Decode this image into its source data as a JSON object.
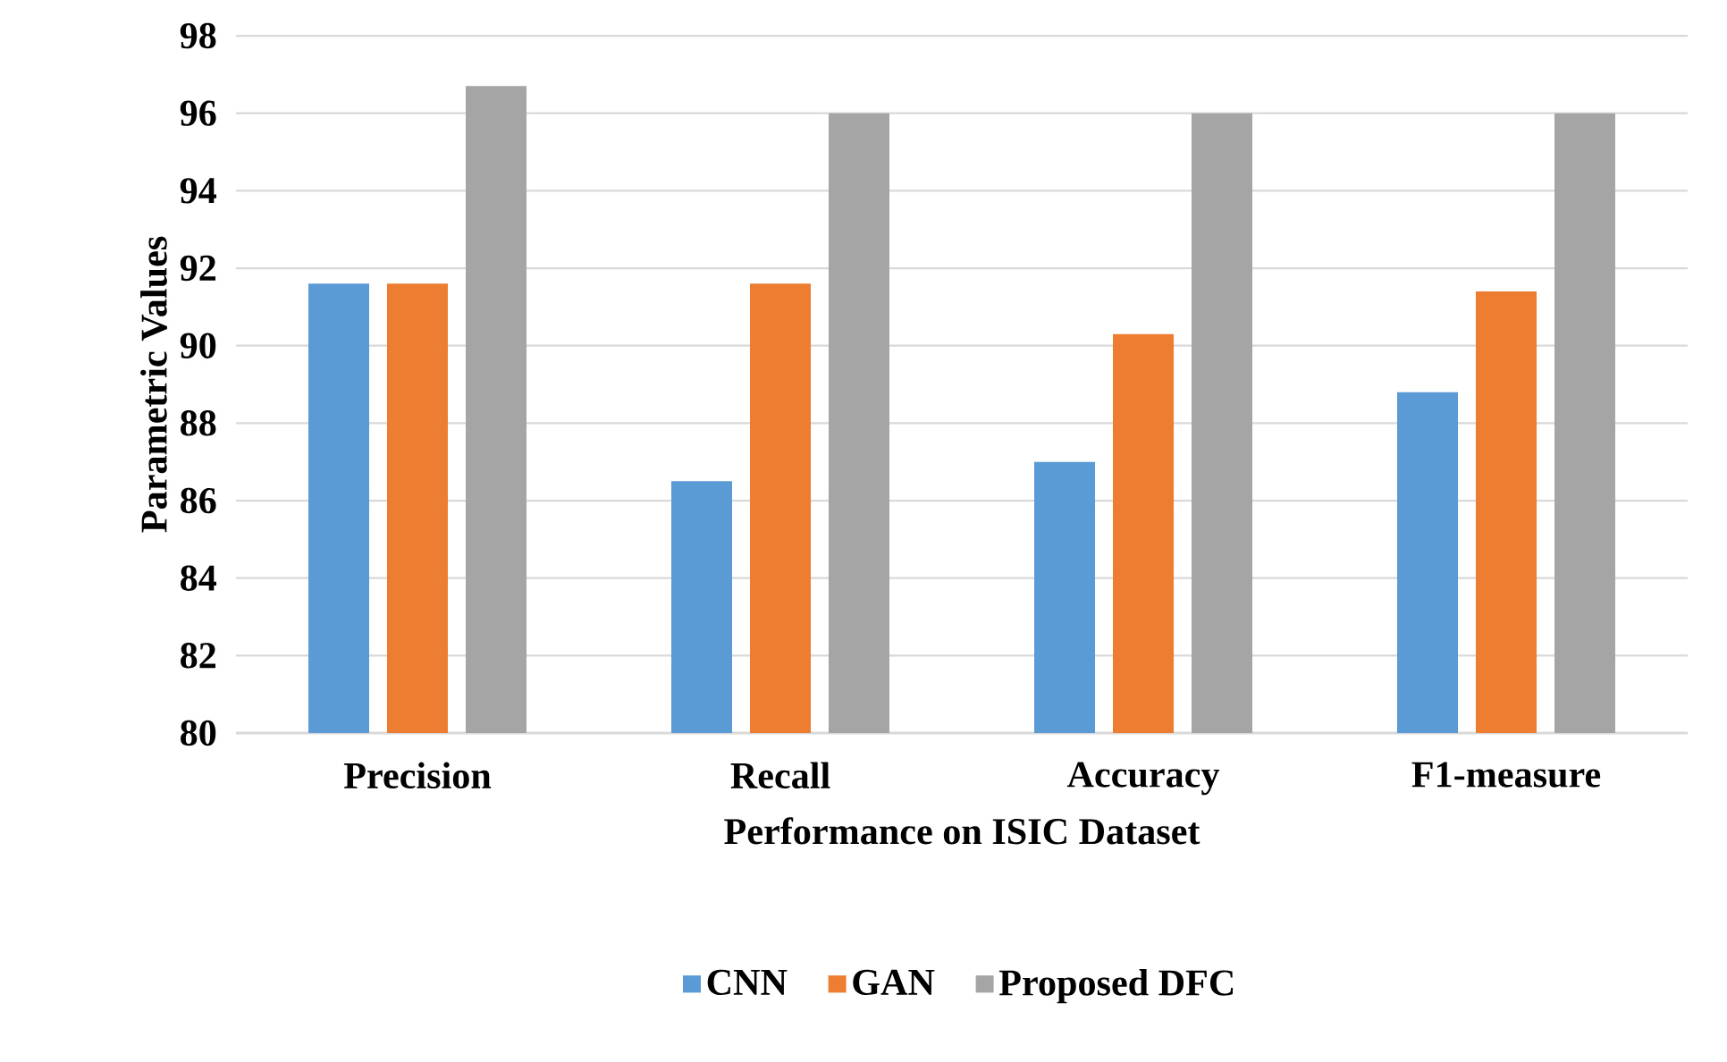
{
  "chart_data": {
    "type": "bar",
    "xlabel": "Performance on ISIC Dataset",
    "ylabel": "Parametric Values",
    "categories": [
      "Precision",
      "Recall",
      "Accuracy",
      "F1-measure"
    ],
    "series": [
      {
        "name": "CNN",
        "color": "#5b9bd5",
        "values": [
          91.6,
          86.5,
          87.0,
          88.8
        ]
      },
      {
        "name": "GAN",
        "color": "#ed7d31",
        "values": [
          91.6,
          91.6,
          90.3,
          91.4
        ]
      },
      {
        "name": "Proposed DFC",
        "color": "#a5a5a5",
        "values": [
          96.7,
          96.0,
          96.0,
          96.0
        ]
      }
    ],
    "ylim": [
      80,
      98
    ],
    "yticks": [
      80,
      82,
      84,
      86,
      88,
      90,
      92,
      94,
      96,
      98
    ],
    "grid": "y",
    "legend": "bottom"
  }
}
